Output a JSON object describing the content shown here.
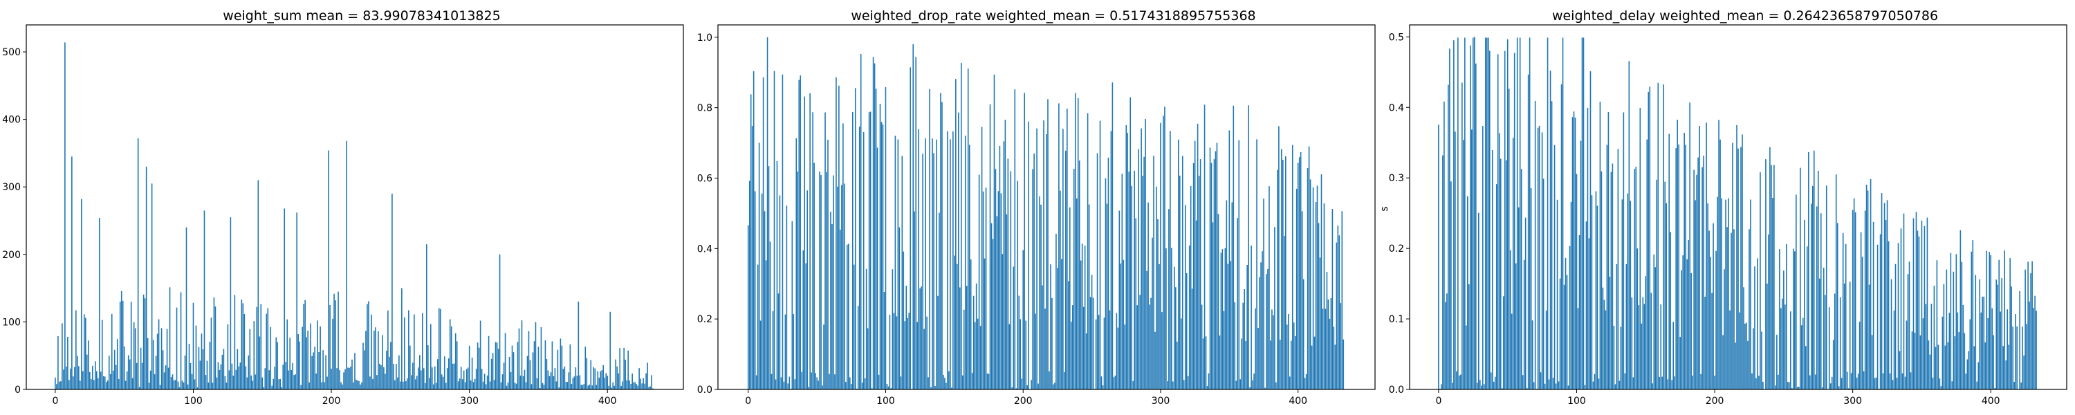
{
  "figure": {
    "background": "#ffffff",
    "bar_color": "#1f77b4"
  },
  "chart_data": [
    {
      "type": "bar",
      "title": "weight_sum mean = 83.99078341013825",
      "xlabel": "",
      "ylabel": "",
      "xlim": [
        -21,
        455
      ],
      "ylim": [
        0,
        540
      ],
      "xticks": [
        0,
        100,
        200,
        300,
        400
      ],
      "yticks": [
        0,
        100,
        200,
        300,
        400,
        500
      ],
      "grid": false,
      "n_bars": 434,
      "max_point": [
        7,
        514
      ],
      "peaks": [
        [
          7,
          514
        ],
        [
          12,
          345
        ],
        [
          19,
          282
        ],
        [
          32,
          254
        ],
        [
          60,
          372
        ],
        [
          66,
          330
        ],
        [
          70,
          305
        ],
        [
          95,
          240
        ],
        [
          108,
          265
        ],
        [
          127,
          255
        ],
        [
          147,
          310
        ],
        [
          166,
          268
        ],
        [
          175,
          262
        ],
        [
          198,
          354
        ],
        [
          211,
          368
        ],
        [
          244,
          290
        ],
        [
          269,
          215
        ],
        [
          322,
          200
        ],
        [
          379,
          130
        ],
        [
          402,
          115
        ]
      ],
      "envelope": {
        "x": [
          0,
          25,
          50,
          75,
          100,
          125,
          150,
          175,
          200,
          225,
          250,
          275,
          300,
          325,
          350,
          375,
          400,
          433
        ],
        "y": [
          100,
          140,
          110,
          120,
          95,
          100,
          110,
          100,
          110,
          100,
          110,
          90,
          70,
          85,
          70,
          60,
          55,
          35
        ]
      },
      "seed": 11
    },
    {
      "type": "bar",
      "title": "weighted_drop_rate weighted_mean = 0.5174318895755368",
      "xlabel": "",
      "ylabel": "",
      "xlim": [
        -22,
        456
      ],
      "ylim": [
        0,
        1.035
      ],
      "xticks": [
        0,
        100,
        200,
        300,
        400
      ],
      "yticks": [
        0.0,
        0.2,
        0.4,
        0.6,
        0.8,
        1.0
      ],
      "grid": false,
      "n_bars": 434,
      "max_point": [
        14,
        1.0
      ],
      "envelope": {
        "x": [
          0,
          50,
          100,
          150,
          200,
          250,
          300,
          350,
          400,
          433
        ],
        "y": [
          0.55,
          0.5,
          0.55,
          0.55,
          0.5,
          0.5,
          0.45,
          0.45,
          0.45,
          0.3
        ]
      },
      "seed": 23
    },
    {
      "type": "bar",
      "title": "weighted_delay weighted_mean = 0.26423658797050786",
      "xlabel": "",
      "ylabel": "s",
      "xlim": [
        -21,
        455
      ],
      "ylim": [
        0,
        0.517
      ],
      "xticks": [
        0,
        100,
        200,
        300,
        400
      ],
      "yticks": [
        0.0,
        0.1,
        0.2,
        0.3,
        0.4,
        0.5
      ],
      "grid": false,
      "n_bars": 434,
      "max_point": [
        26,
        0.5
      ],
      "envelope": {
        "x": [
          0,
          50,
          100,
          150,
          200,
          250,
          300,
          350,
          400,
          433
        ],
        "y": [
          0.3,
          0.3,
          0.3,
          0.25,
          0.22,
          0.2,
          0.18,
          0.15,
          0.12,
          0.1
        ]
      },
      "seed": 37
    }
  ]
}
